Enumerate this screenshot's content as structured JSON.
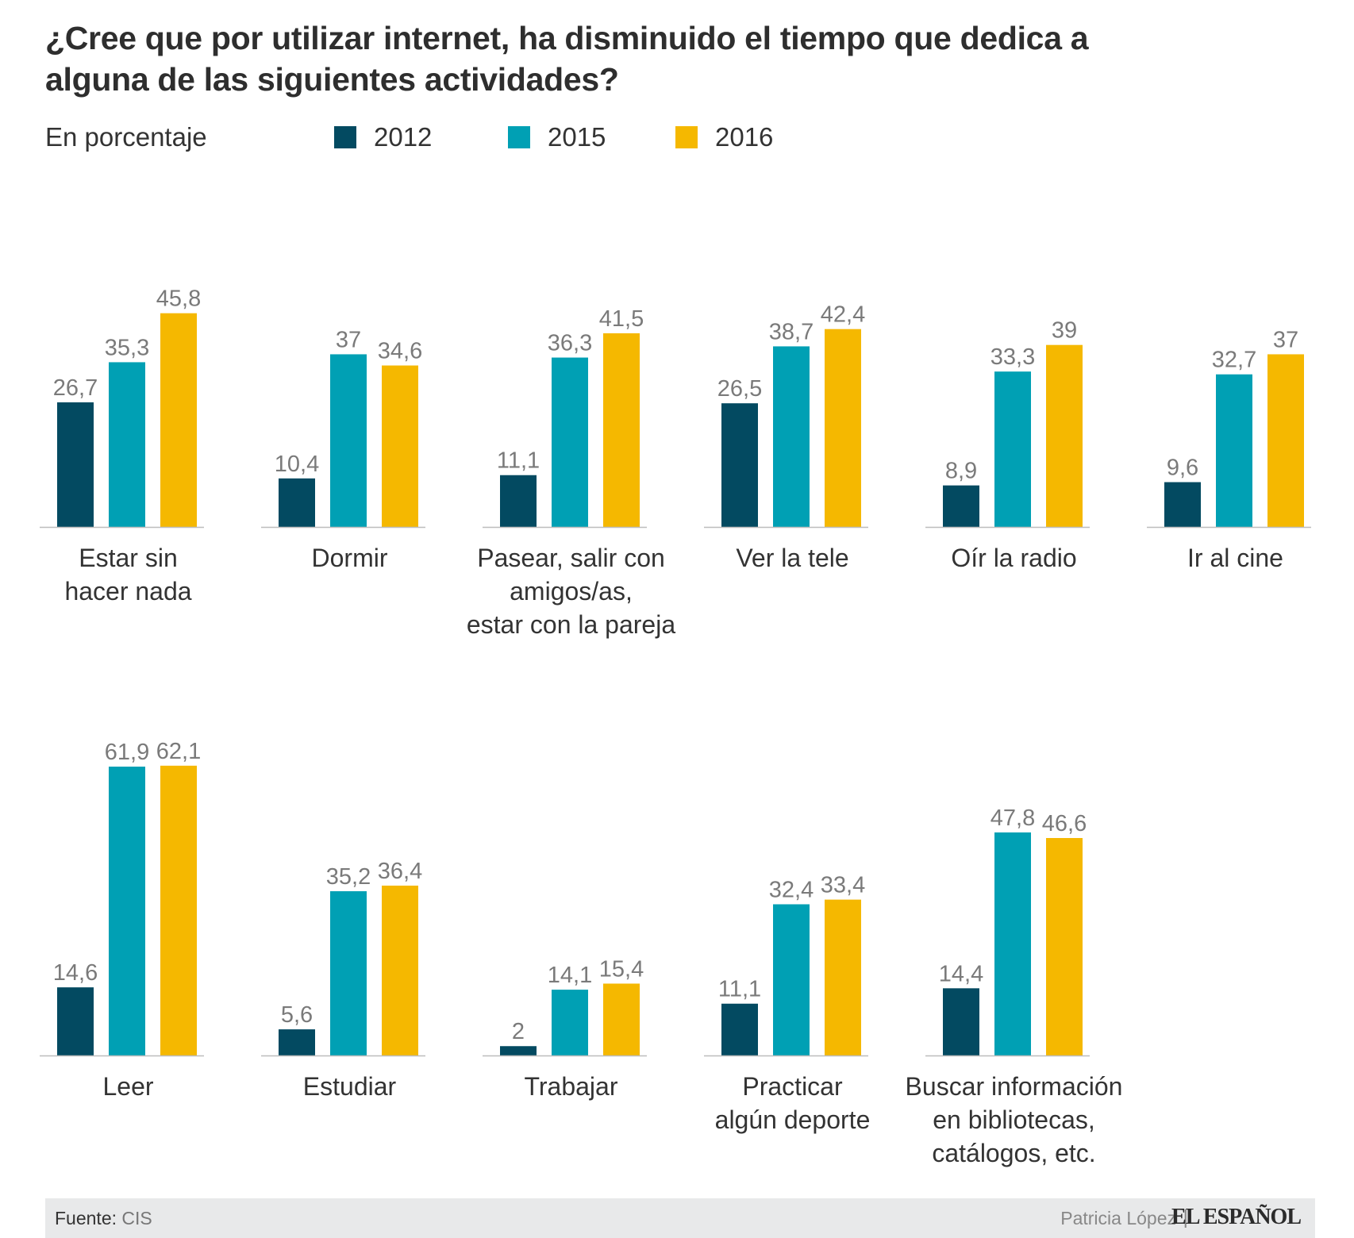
{
  "title": "¿Cree que por utilizar internet, ha disminuido el tiempo que dedica a alguna de las siguientes actividades?",
  "subtitle": "En porcentaje",
  "legend": [
    {
      "label": "2012",
      "color": "#034a61"
    },
    {
      "label": "2015",
      "color": "#00a0b4"
    },
    {
      "label": "2016",
      "color": "#f5b800"
    }
  ],
  "chart_data": {
    "type": "bar",
    "series_names": [
      "2012",
      "2015",
      "2016"
    ],
    "colors": [
      "#034a61",
      "#00a0b4",
      "#f5b800"
    ],
    "panels": [
      {
        "category": "Estar sin hacer nada",
        "label_lines": [
          "Estar sin",
          "hacer nada"
        ],
        "values": [
          26.7,
          35.3,
          45.8
        ],
        "value_labels": [
          "26,7",
          "35,3",
          "45,8"
        ]
      },
      {
        "category": "Dormir",
        "label_lines": [
          "Dormir"
        ],
        "values": [
          10.4,
          37,
          34.6
        ],
        "value_labels": [
          "10,4",
          "37",
          "34,6"
        ]
      },
      {
        "category": "Pasear, salir con amigos/as, estar con la pareja",
        "label_lines": [
          "Pasear, salir con",
          "amigos/as,",
          "estar con la pareja"
        ],
        "values": [
          11.1,
          36.3,
          41.5
        ],
        "value_labels": [
          "11,1",
          "36,3",
          "41,5"
        ]
      },
      {
        "category": "Ver la tele",
        "label_lines": [
          "Ver la tele"
        ],
        "values": [
          26.5,
          38.7,
          42.4
        ],
        "value_labels": [
          "26,5",
          "38,7",
          "42,4"
        ]
      },
      {
        "category": "Oír la radio",
        "label_lines": [
          "Oír la radio"
        ],
        "values": [
          8.9,
          33.3,
          39
        ],
        "value_labels": [
          "8,9",
          "33,3",
          "39"
        ]
      },
      {
        "category": "Ir al cine",
        "label_lines": [
          "Ir al cine"
        ],
        "values": [
          9.6,
          32.7,
          37
        ],
        "value_labels": [
          "9,6",
          "32,7",
          "37"
        ]
      },
      {
        "category": "Leer",
        "label_lines": [
          "Leer"
        ],
        "values": [
          14.6,
          61.9,
          62.1
        ],
        "value_labels": [
          "14,6",
          "61,9",
          "62,1"
        ]
      },
      {
        "category": "Estudiar",
        "label_lines": [
          "Estudiar"
        ],
        "values": [
          5.6,
          35.2,
          36.4
        ],
        "value_labels": [
          "5,6",
          "35,2",
          "36,4"
        ]
      },
      {
        "category": "Trabajar",
        "label_lines": [
          "Trabajar"
        ],
        "values": [
          2,
          14.1,
          15.4
        ],
        "value_labels": [
          "2",
          "14,1",
          "15,4"
        ]
      },
      {
        "category": "Practicar algún deporte",
        "label_lines": [
          "Practicar",
          "algún deporte"
        ],
        "values": [
          11.1,
          32.4,
          33.4
        ],
        "value_labels": [
          "11,1",
          "32,4",
          "33,4"
        ]
      },
      {
        "category": "Buscar información en bibliotecas, catálogos, etc.",
        "label_lines": [
          "Buscar información",
          "en bibliotecas,",
          "catálogos, etc."
        ],
        "values": [
          14.4,
          47.8,
          46.6
        ],
        "value_labels": [
          "14,4",
          "47,8",
          "46,6"
        ]
      }
    ],
    "grid": false
  },
  "footer": {
    "source_label": "Fuente:",
    "source_value": "CIS",
    "author": "Patricia López",
    "separator": "|",
    "brand": "EL ESPAÑOL"
  }
}
